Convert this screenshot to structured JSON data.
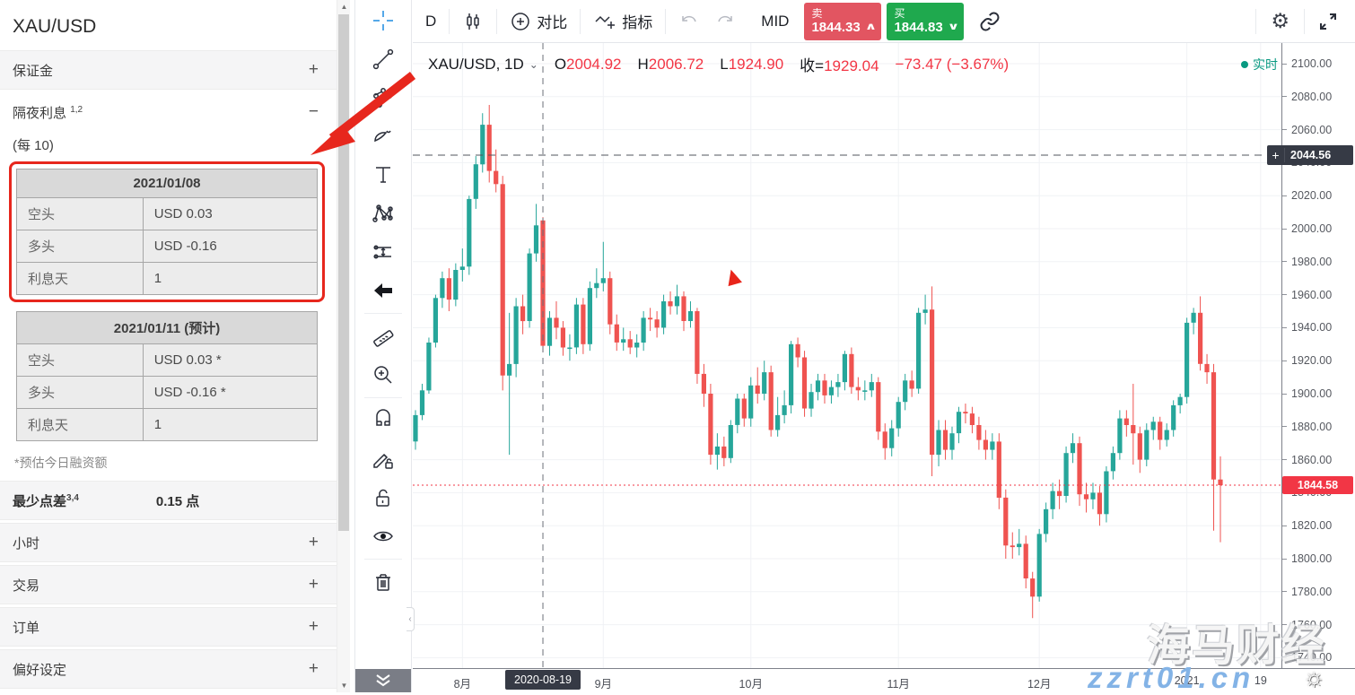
{
  "sidebar": {
    "title": "XAU/USD",
    "margin_row": {
      "label": "保证金",
      "action": "+"
    },
    "overnight_row": {
      "label": "隔夜利息",
      "sup": "1,2",
      "action": "−"
    },
    "overnight": {
      "subtitle": "(每 10)",
      "tables": [
        {
          "header": "2021/01/08",
          "rows": [
            [
              "空头",
              "USD 0.03"
            ],
            [
              "多头",
              "USD -0.16"
            ],
            [
              "利息天",
              "1"
            ]
          ]
        },
        {
          "header": "2021/01/11 (预计)",
          "rows": [
            [
              "空头",
              "USD 0.03 *"
            ],
            [
              "多头",
              "USD -0.16 *"
            ],
            [
              "利息天",
              "1"
            ]
          ]
        }
      ],
      "footnote": "*预估今日融资额"
    },
    "spread_row": {
      "label": "最少点差",
      "sup": "3,4",
      "value": "0.15 点"
    },
    "collapsed_sections": [
      {
        "label": "小时",
        "action": "+"
      },
      {
        "label": "交易",
        "action": "+"
      },
      {
        "label": "订单",
        "action": "+"
      },
      {
        "label": "偏好设定",
        "action": "+"
      }
    ]
  },
  "toolbar": {
    "interval": "D",
    "compare_label": "对比",
    "indicators_label": "指标",
    "mid_label": "MID",
    "sell": {
      "label": "卖",
      "price": "1844.33",
      "caret": "∧",
      "bg": "#e25561"
    },
    "buy": {
      "label": "买",
      "price": "1844.83",
      "caret": "∨",
      "bg": "#1fa94e"
    }
  },
  "legend": {
    "symbol": "XAU/USD, 1D",
    "o_label": "O",
    "o": "2004.92",
    "h_label": "H",
    "h": "2006.72",
    "l_label": "L",
    "l": "1924.90",
    "c_label": "收=",
    "c": "1929.04",
    "change": "−73.47 (−3.67%)",
    "realtime": "实时"
  },
  "price_axis": {
    "ticks": [
      "2100.00",
      "2080.00",
      "2060.00",
      "2040.00",
      "2020.00",
      "2000.00",
      "1980.00",
      "1960.00",
      "1940.00",
      "1920.00",
      "1900.00",
      "1880.00",
      "1860.00",
      "1840.00",
      "1820.00",
      "1800.00",
      "1780.00",
      "1760.00",
      "1740.00"
    ]
  },
  "time_axis": {
    "ticks": [
      {
        "label": "8月",
        "i": 7
      },
      {
        "label": "9月",
        "i": 28
      },
      {
        "label": "10月",
        "i": 50
      },
      {
        "label": "11月",
        "i": 72
      },
      {
        "label": "12月",
        "i": 93
      },
      {
        "label": "2021",
        "i": 115
      },
      {
        "label": "19",
        "i": 126
      }
    ]
  },
  "chart_data": {
    "type": "candlestick",
    "symbol": "XAU/USD",
    "timeframe": "1D",
    "visible_range": "2020-07-23 … 2021-01-11",
    "ylim": [
      1736,
      2108
    ],
    "up_color": "#26a69a",
    "down_color": "#ef5350",
    "crosshair": {
      "date_label": "2020-08-19",
      "price_label": "2044.56",
      "price": 2044.56,
      "index": 19
    },
    "last_price": {
      "label": "1844.58",
      "price": 1844.58
    },
    "marker": {
      "shape": "red-arrowhead",
      "color": "#e8251a",
      "index": 47.4,
      "price": 1970
    },
    "candles": [
      [
        1871,
        1890,
        1866,
        1887
      ],
      [
        1887,
        1906,
        1884,
        1902
      ],
      [
        1902,
        1934,
        1900,
        1931
      ],
      [
        1931,
        1960,
        1928,
        1958
      ],
      [
        1958,
        1974,
        1952,
        1970
      ],
      [
        1970,
        1976,
        1950,
        1957
      ],
      [
        1957,
        1979,
        1953,
        1975
      ],
      [
        1975,
        1988,
        1968,
        1977
      ],
      [
        1977,
        2020,
        1972,
        2018
      ],
      [
        2018,
        2044,
        2012,
        2039
      ],
      [
        2039,
        2070,
        2034,
        2063
      ],
      [
        2063,
        2075,
        2028,
        2035
      ],
      [
        2035,
        2048,
        2022,
        2027
      ],
      [
        2027,
        2032,
        1902,
        1911
      ],
      [
        1911,
        1949,
        1863,
        1918
      ],
      [
        1918,
        1958,
        1910,
        1953
      ],
      [
        1953,
        1960,
        1936,
        1944
      ],
      [
        1944,
        1988,
        1940,
        1985
      ],
      [
        1985,
        2015,
        1980,
        2002
      ],
      [
        2005,
        2007,
        1925,
        1929
      ],
      [
        1929,
        1950,
        1923,
        1946
      ],
      [
        1946,
        1956,
        1933,
        1940
      ],
      [
        1940,
        1944,
        1923,
        1928
      ],
      [
        1928,
        1936,
        1920,
        1928
      ],
      [
        1928,
        1958,
        1924,
        1954
      ],
      [
        1954,
        1958,
        1924,
        1930
      ],
      [
        1930,
        1968,
        1926,
        1964
      ],
      [
        1964,
        1976,
        1958,
        1967
      ],
      [
        1967,
        1992,
        1962,
        1970
      ],
      [
        1970,
        1974,
        1936,
        1942
      ],
      [
        1942,
        1948,
        1926,
        1931
      ],
      [
        1931,
        1940,
        1926,
        1933
      ],
      [
        1933,
        1938,
        1924,
        1928
      ],
      [
        1928,
        1936,
        1922,
        1931
      ],
      [
        1931,
        1950,
        1926,
        1946
      ],
      [
        1946,
        1952,
        1938,
        1945
      ],
      [
        1945,
        1950,
        1934,
        1940
      ],
      [
        1940,
        1960,
        1936,
        1956
      ],
      [
        1956,
        1962,
        1948,
        1953
      ],
      [
        1953,
        1966,
        1948,
        1959
      ],
      [
        1959,
        1962,
        1938,
        1944
      ],
      [
        1944,
        1956,
        1940,
        1950
      ],
      [
        1950,
        1952,
        1906,
        1912
      ],
      [
        1912,
        1918,
        1892,
        1900
      ],
      [
        1900,
        1906,
        1857,
        1863
      ],
      [
        1863,
        1876,
        1854,
        1868
      ],
      [
        1868,
        1874,
        1856,
        1861
      ],
      [
        1861,
        1884,
        1858,
        1881
      ],
      [
        1881,
        1900,
        1876,
        1897
      ],
      [
        1897,
        1900,
        1880,
        1885
      ],
      [
        1885,
        1910,
        1880,
        1905
      ],
      [
        1905,
        1916,
        1894,
        1900
      ],
      [
        1900,
        1920,
        1896,
        1913
      ],
      [
        1913,
        1917,
        1874,
        1878
      ],
      [
        1878,
        1898,
        1874,
        1887
      ],
      [
        1887,
        1902,
        1882,
        1893
      ],
      [
        1893,
        1932,
        1888,
        1930
      ],
      [
        1930,
        1934,
        1916,
        1922
      ],
      [
        1922,
        1926,
        1886,
        1891
      ],
      [
        1891,
        1906,
        1886,
        1901
      ],
      [
        1901,
        1912,
        1896,
        1908
      ],
      [
        1908,
        1912,
        1894,
        1899
      ],
      [
        1899,
        1908,
        1894,
        1904
      ],
      [
        1904,
        1912,
        1898,
        1907
      ],
      [
        1907,
        1926,
        1902,
        1924
      ],
      [
        1924,
        1928,
        1900,
        1904
      ],
      [
        1904,
        1910,
        1896,
        1902
      ],
      [
        1902,
        1908,
        1896,
        1902
      ],
      [
        1902,
        1912,
        1898,
        1907
      ],
      [
        1907,
        1910,
        1872,
        1877
      ],
      [
        1877,
        1882,
        1860,
        1867
      ],
      [
        1867,
        1884,
        1862,
        1879
      ],
      [
        1879,
        1898,
        1874,
        1895
      ],
      [
        1895,
        1912,
        1890,
        1908
      ],
      [
        1908,
        1914,
        1898,
        1903
      ],
      [
        1903,
        1952,
        1900,
        1949
      ],
      [
        1949,
        1960,
        1942,
        1951
      ],
      [
        1951,
        1965,
        1850,
        1863
      ],
      [
        1863,
        1884,
        1856,
        1878
      ],
      [
        1878,
        1884,
        1860,
        1866
      ],
      [
        1866,
        1880,
        1860,
        1876
      ],
      [
        1876,
        1892,
        1870,
        1889
      ],
      [
        1889,
        1894,
        1882,
        1888
      ],
      [
        1888,
        1892,
        1876,
        1881
      ],
      [
        1881,
        1886,
        1866,
        1872
      ],
      [
        1872,
        1878,
        1860,
        1866
      ],
      [
        1866,
        1876,
        1860,
        1871
      ],
      [
        1871,
        1876,
        1830,
        1837
      ],
      [
        1837,
        1842,
        1800,
        1808
      ],
      [
        1808,
        1816,
        1800,
        1807
      ],
      [
        1807,
        1818,
        1802,
        1809
      ],
      [
        1809,
        1814,
        1782,
        1788
      ],
      [
        1788,
        1792,
        1764,
        1777
      ],
      [
        1777,
        1818,
        1774,
        1815
      ],
      [
        1815,
        1834,
        1810,
        1830
      ],
      [
        1830,
        1846,
        1824,
        1841
      ],
      [
        1841,
        1848,
        1830,
        1838
      ],
      [
        1838,
        1868,
        1834,
        1864
      ],
      [
        1864,
        1876,
        1858,
        1870
      ],
      [
        1870,
        1874,
        1832,
        1839
      ],
      [
        1839,
        1846,
        1828,
        1836
      ],
      [
        1836,
        1846,
        1830,
        1840
      ],
      [
        1840,
        1844,
        1820,
        1827
      ],
      [
        1827,
        1856,
        1822,
        1853
      ],
      [
        1853,
        1868,
        1848,
        1864
      ],
      [
        1864,
        1890,
        1860,
        1885
      ],
      [
        1885,
        1890,
        1874,
        1881
      ],
      [
        1881,
        1906,
        1857,
        1876
      ],
      [
        1876,
        1880,
        1852,
        1860
      ],
      [
        1860,
        1882,
        1856,
        1878
      ],
      [
        1878,
        1886,
        1872,
        1883
      ],
      [
        1883,
        1886,
        1866,
        1872
      ],
      [
        1872,
        1882,
        1868,
        1878
      ],
      [
        1878,
        1896,
        1874,
        1893
      ],
      [
        1893,
        1900,
        1888,
        1898
      ],
      [
        1898,
        1946,
        1894,
        1943
      ],
      [
        1943,
        1952,
        1936,
        1949
      ],
      [
        1949,
        1959,
        1914,
        1918
      ],
      [
        1918,
        1924,
        1906,
        1913
      ],
      [
        1913,
        1918,
        1817,
        1848
      ],
      [
        1848,
        1862,
        1810,
        1844.58
      ]
    ]
  },
  "watermark": {
    "brand": "海马财经",
    "site": "zzrt01.cn"
  },
  "colors": {
    "annotation_red": "#e7271d",
    "realtime_green": "#089981",
    "badge_dark": "#363a45",
    "last_price_red": "#f23645"
  }
}
